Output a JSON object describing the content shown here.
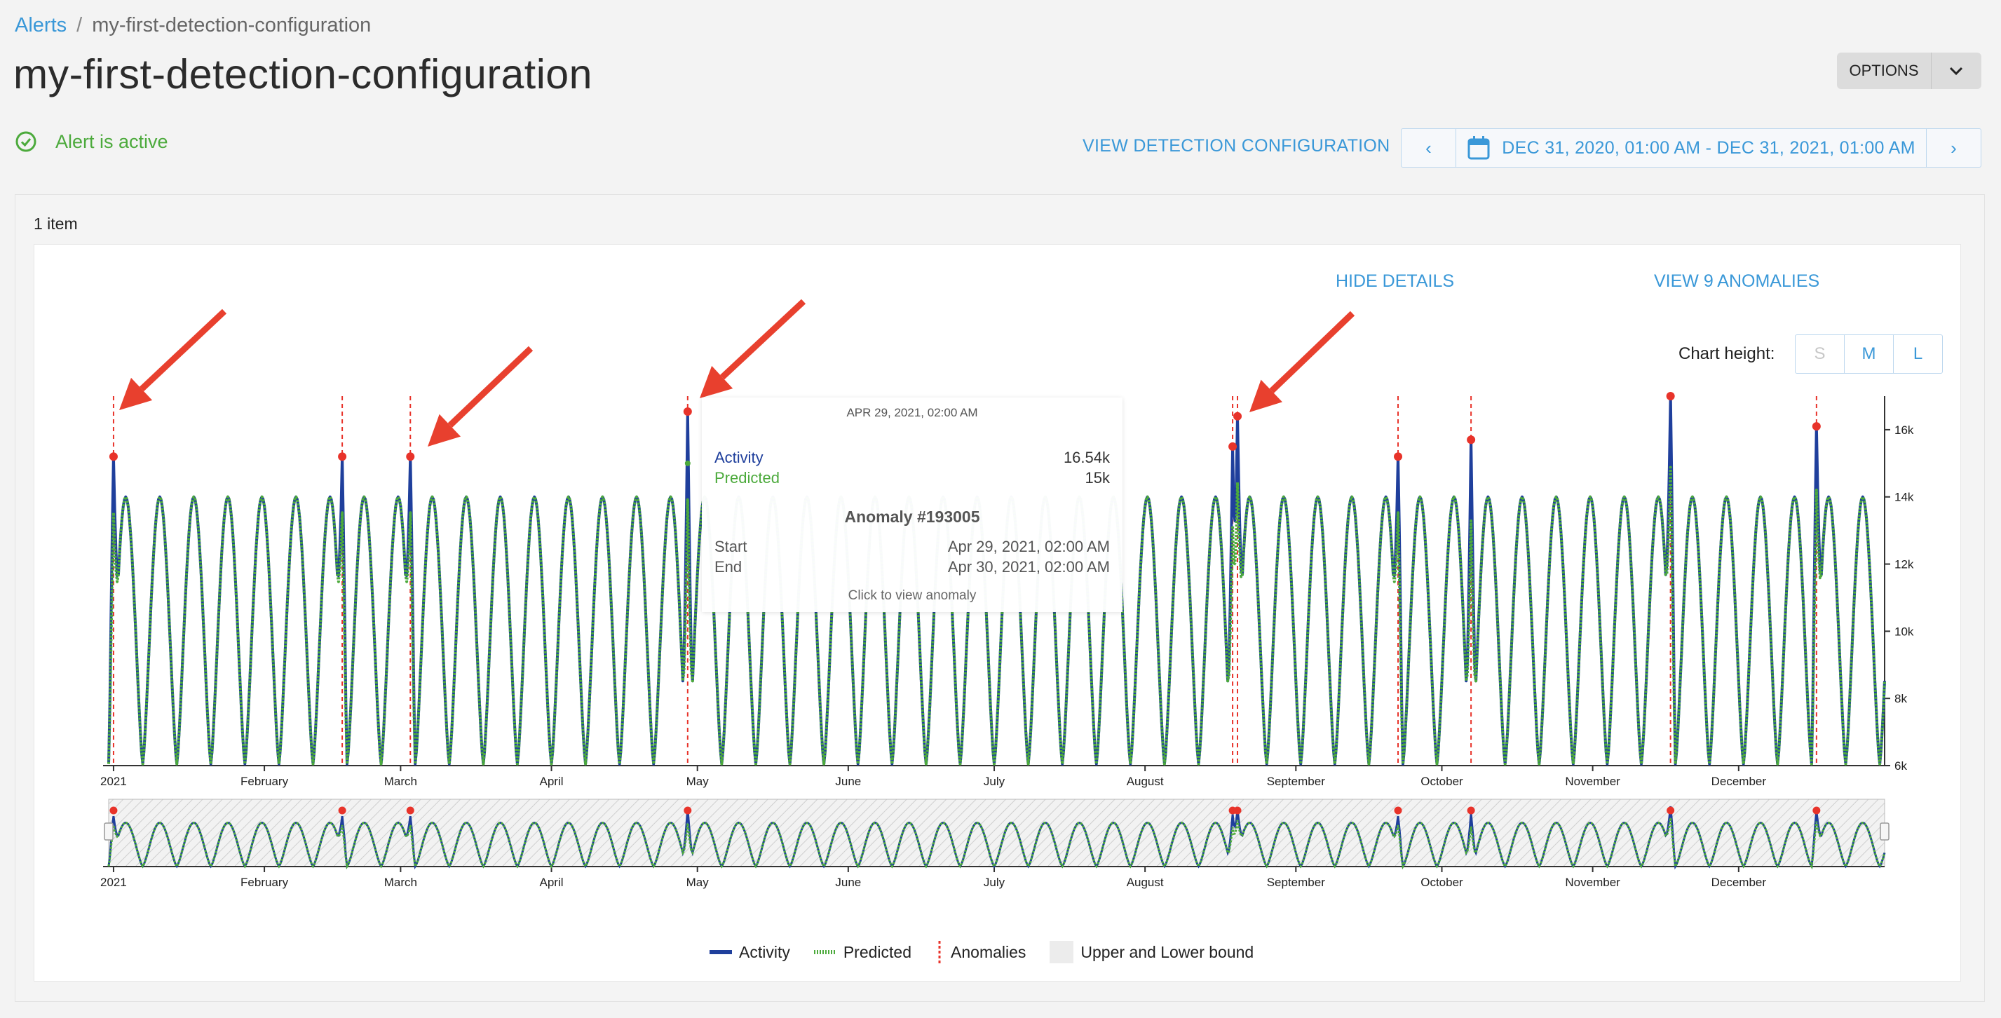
{
  "breadcrumb": {
    "root": "Alerts",
    "separator": "/",
    "current": "my-first-detection-configuration"
  },
  "page": {
    "title": "my-first-detection-configuration",
    "status": "Alert is active"
  },
  "toolbar": {
    "options_label": "OPTIONS",
    "view_config_label": "VIEW DETECTION CONFIGURATION",
    "date_range": "DEC 31, 2020, 01:00 AM - DEC 31, 2021, 01:00 AM",
    "prev_label": "‹",
    "next_label": "›"
  },
  "results": {
    "count_label": "1 item"
  },
  "card": {
    "hide_details_label": "HIDE DETAILS",
    "view_anomalies_label": "VIEW 9 ANOMALIES",
    "chart_height_label": "Chart height:",
    "height_options": [
      "S",
      "M",
      "L"
    ]
  },
  "tooltip": {
    "date": "APR 29, 2021, 02:00 AM",
    "activity_label": "Activity",
    "activity_value": "16.54k",
    "predicted_label": "Predicted",
    "predicted_value": "15k",
    "anomaly_title": "Anomaly #193005",
    "start_label": "Start",
    "start_value": "Apr 29, 2021, 02:00 AM",
    "end_label": "End",
    "end_value": "Apr 30, 2021, 02:00 AM",
    "footer": "Click to view anomaly"
  },
  "legend": {
    "activity": "Activity",
    "predicted": "Predicted",
    "anomalies": "Anomalies",
    "bounds": "Upper and Lower bound"
  },
  "colors": {
    "accent": "#3a98d8",
    "activity": "#1f3f9c",
    "predicted": "#4caa3c",
    "anomaly": "#e8332a",
    "status": "#4caa3c"
  },
  "chart_data": {
    "type": "line",
    "x_ticks": [
      "2021",
      "February",
      "March",
      "April",
      "May",
      "June",
      "July",
      "August",
      "September",
      "October",
      "November",
      "December"
    ],
    "y_ticks": [
      "16k",
      "14k",
      "12k",
      "10k",
      "8k",
      "6k"
    ],
    "ylim": [
      6000,
      17000
    ],
    "x_range": [
      "2020-12-31",
      "2021-12-31"
    ],
    "series": [
      {
        "name": "Activity",
        "pattern": "weekly cycle between ~6k and ~14k"
      },
      {
        "name": "Predicted",
        "pattern": "weekly cycle between ~6k and ~14k"
      }
    ],
    "anomalies": [
      {
        "date": "2021-01-01",
        "value": 15200
      },
      {
        "date": "2021-02-17",
        "value": 15200
      },
      {
        "date": "2021-03-03",
        "value": 15200
      },
      {
        "date": "2021-04-29",
        "value": 16540,
        "predicted": 15000
      },
      {
        "date": "2021-08-19",
        "value": 15500
      },
      {
        "date": "2021-08-20",
        "value": 16400
      },
      {
        "date": "2021-09-22",
        "value": 15200
      },
      {
        "date": "2021-10-07",
        "value": 15700
      },
      {
        "date": "2021-11-17",
        "value": 17000
      },
      {
        "date": "2021-12-17",
        "value": 16100
      }
    ],
    "annotations": "four red arrows pointing at anomalies"
  }
}
